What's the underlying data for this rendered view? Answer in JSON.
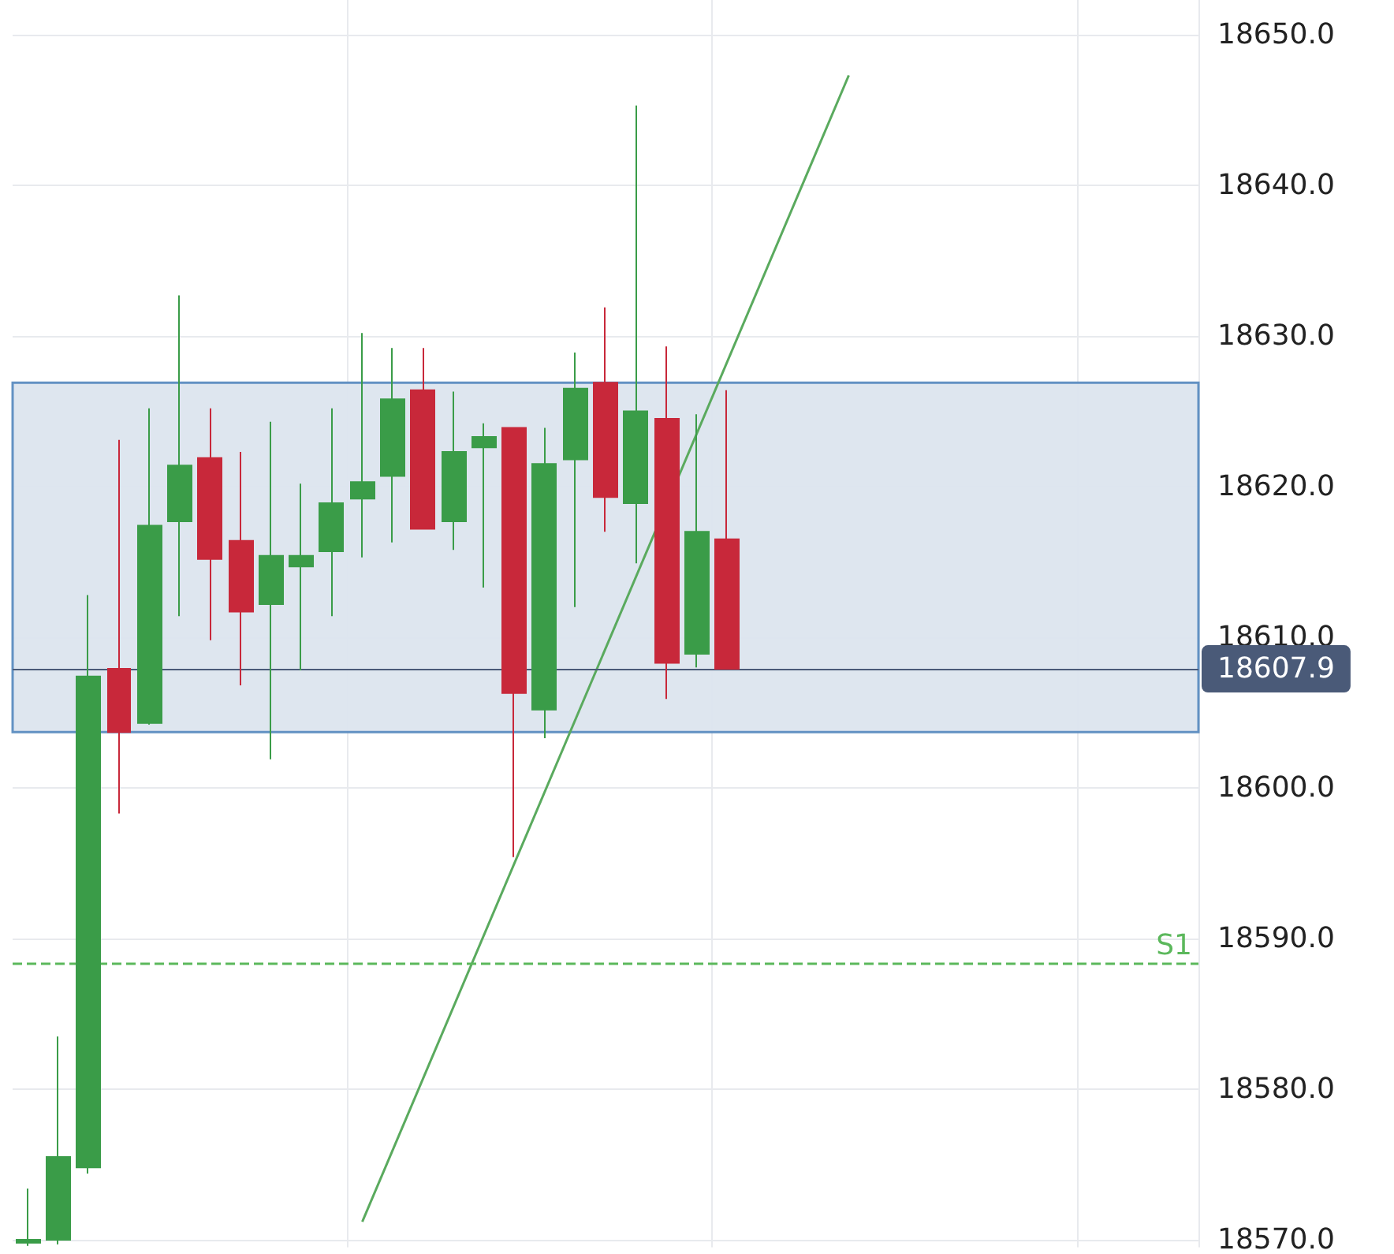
{
  "chart_data": {
    "type": "candlestick",
    "categories": [
      null,
      null,
      null,
      null,
      null,
      null,
      null,
      null,
      null,
      null,
      null,
      null,
      null,
      null,
      null,
      null,
      null,
      null,
      null,
      null,
      null,
      null,
      null,
      null,
      null,
      null,
      null,
      null,
      null,
      null,
      null,
      null,
      null,
      null,
      null,
      null,
      null,
      null,
      null
    ],
    "series": [
      {
        "colors": [
          "#3a9c48",
          "#3a9c48",
          "#3a9c48",
          "#c8283a",
          "#3a9c48",
          "#3a9c48",
          "#c8283a",
          "#c8283a",
          "#3a9c48",
          "#3a9c48",
          "#3a9c48",
          "#3a9c48",
          "#3a9c48",
          "#c8283a",
          "#3a9c48",
          "#3a9c48",
          "#c8283a",
          "#3a9c48",
          "#3a9c48",
          "#c8283a",
          "#3a9c48",
          "#c8283a",
          "#3a9c48",
          "#c8283a",
          null,
          null,
          null,
          null,
          null,
          null,
          null,
          null,
          null,
          null,
          null,
          null,
          null,
          null,
          null
        ],
        "ohlc": [
          [
            18569.8,
            18573.4,
            18569.6,
            18570.0
          ],
          [
            18570.0,
            18583.5,
            18569.7,
            18575.5
          ],
          [
            18574.8,
            18612.8,
            18574.4,
            18607.4
          ],
          [
            18607.9,
            18623.1,
            18598.3,
            18603.7
          ],
          [
            18604.3,
            18625.2,
            18604.2,
            18617.4
          ],
          [
            18617.7,
            18632.7,
            18611.4,
            18621.4
          ],
          [
            18621.9,
            18625.2,
            18609.8,
            18615.2
          ],
          [
            18616.4,
            18622.3,
            18606.8,
            18611.7
          ],
          [
            18612.2,
            18624.3,
            18601.9,
            18615.4
          ],
          [
            18614.7,
            18620.2,
            18607.8,
            18615.4
          ],
          [
            18615.7,
            18625.2,
            18611.4,
            18618.9
          ],
          [
            18619.2,
            18630.2,
            18615.3,
            18620.3
          ],
          [
            18620.7,
            18629.2,
            18616.3,
            18625.8
          ],
          [
            18626.4,
            18629.2,
            18617.2,
            18617.2
          ],
          [
            18617.7,
            18626.3,
            18615.8,
            18622.3
          ],
          [
            18622.6,
            18624.2,
            18613.3,
            18623.3
          ],
          [
            18623.9,
            18623.9,
            18595.4,
            18606.3
          ],
          [
            18605.2,
            18623.9,
            18603.3,
            18621.5
          ],
          [
            18621.8,
            18628.9,
            18612.0,
            18626.5
          ],
          [
            18626.9,
            18631.9,
            18617.0,
            18619.3
          ],
          [
            18618.9,
            18645.3,
            18614.9,
            18625.0
          ],
          [
            18624.5,
            18629.3,
            18605.9,
            18608.3
          ],
          [
            18608.9,
            18624.8,
            18608.0,
            18617.0
          ],
          [
            18616.5,
            18626.4,
            18607.9,
            18607.9
          ],
          null,
          null,
          null,
          null,
          null,
          null,
          null,
          null,
          null,
          null,
          null,
          null,
          null,
          null,
          null
        ]
      },
      {
        "type": "line",
        "color": "#5aaa5e",
        "values": [
          null,
          null,
          null,
          null,
          null,
          null,
          null,
          null,
          null,
          null,
          null,
          18571.2,
          null,
          null,
          null,
          null,
          null,
          null,
          null,
          null,
          null,
          null,
          null,
          null,
          null,
          null,
          null,
          18647.3,
          null,
          null,
          null,
          null,
          null,
          null,
          null,
          null,
          null,
          null,
          null
        ]
      }
    ],
    "ylim": [
      18569.5,
      18652.3
    ],
    "yticks": [
      {
        "value": 18570,
        "label": "18570.0"
      },
      {
        "value": 18580,
        "label": "18580.0"
      },
      {
        "value": 18590,
        "label": "18590.0"
      },
      {
        "value": 18600,
        "label": "18600.0"
      },
      {
        "value": 18610,
        "label": "18610.0"
      },
      {
        "value": 18620,
        "label": "18620.0"
      },
      {
        "value": 18630,
        "label": "18630.0"
      },
      {
        "value": 18640,
        "label": "18640.0"
      },
      {
        "value": 18650,
        "label": "18650.0"
      }
    ],
    "ref_lines": [
      {
        "axis": "y",
        "value": 18607.9,
        "label": "18607.9",
        "color": "#4a5a78",
        "line_style": "solid"
      },
      {
        "axis": "y",
        "value": 18588.4,
        "label": "S1",
        "color": "#5cb85c",
        "line_style": "dashed"
      }
    ],
    "bands": [
      {
        "axis": "y",
        "from": 18603.7,
        "to": 18626.9,
        "color": "#dce5ee"
      }
    ],
    "grid": true,
    "tick_labels": "y"
  }
}
